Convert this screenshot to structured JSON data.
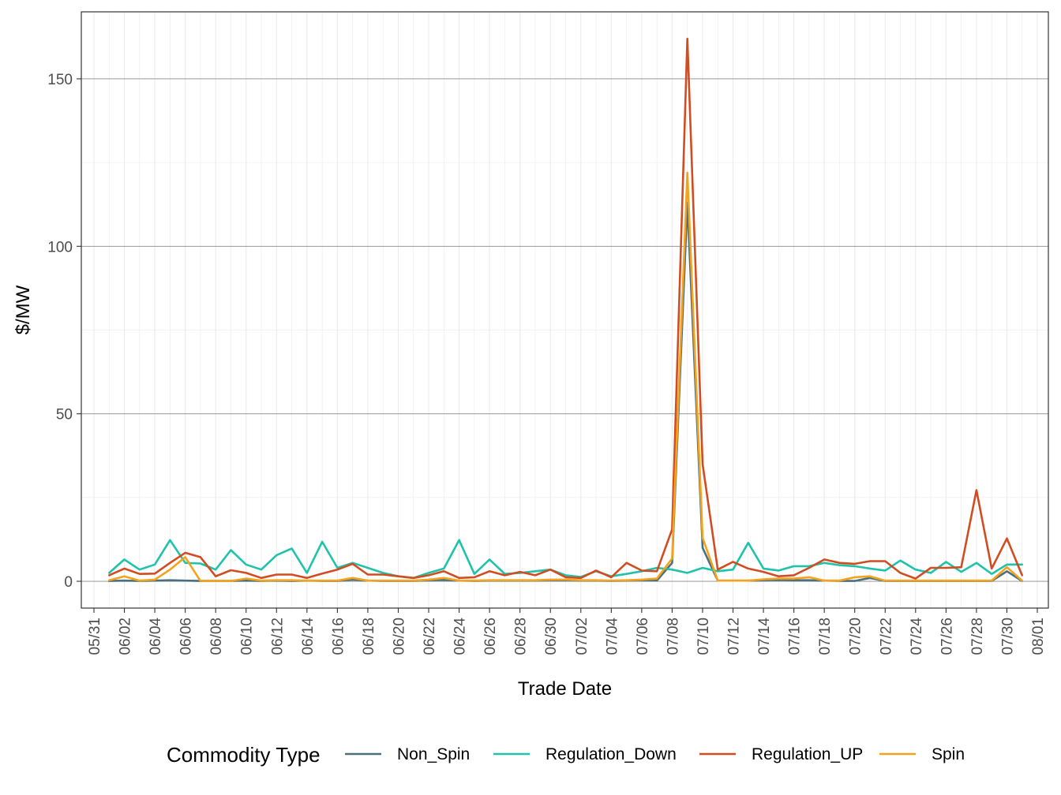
{
  "chart_data": {
    "type": "line",
    "xlabel": "Trade Date",
    "ylabel": "$/MW",
    "x_tick_labels": [
      "05/31",
      "06/02",
      "06/04",
      "06/06",
      "06/08",
      "06/10",
      "06/12",
      "06/14",
      "06/16",
      "06/18",
      "06/20",
      "06/22",
      "06/24",
      "06/26",
      "06/28",
      "06/30",
      "07/02",
      "07/04",
      "07/06",
      "07/08",
      "07/10",
      "07/12",
      "07/14",
      "07/16",
      "07/18",
      "07/20",
      "07/22",
      "07/24",
      "07/26",
      "07/28",
      "07/30",
      "08/01"
    ],
    "y_ticks": [
      0,
      50,
      100,
      150
    ],
    "ylim": [
      -8,
      170
    ],
    "xlim": [
      "2023-05-31",
      "2023-08-01"
    ],
    "grid": true,
    "legend_title": "Commodity Type",
    "legend_position": "bottom",
    "x": [
      "06/01",
      "06/02",
      "06/03",
      "06/04",
      "06/05",
      "06/06",
      "06/07",
      "06/08",
      "06/09",
      "06/10",
      "06/11",
      "06/12",
      "06/13",
      "06/14",
      "06/15",
      "06/16",
      "06/17",
      "06/18",
      "06/19",
      "06/20",
      "06/21",
      "06/22",
      "06/23",
      "06/24",
      "06/25",
      "06/26",
      "06/27",
      "06/28",
      "06/29",
      "06/30",
      "07/01",
      "07/02",
      "07/03",
      "07/04",
      "07/05",
      "07/06",
      "07/07",
      "07/08",
      "07/09",
      "07/10",
      "07/11",
      "07/12",
      "07/13",
      "07/14",
      "07/15",
      "07/16",
      "07/17",
      "07/18",
      "07/19",
      "07/20",
      "07/21",
      "07/22",
      "07/23",
      "07/24",
      "07/25",
      "07/26",
      "07/27",
      "07/28",
      "07/29",
      "07/30",
      "07/31"
    ],
    "series": [
      {
        "name": "Non_Spin",
        "color": "#4a6f80",
        "values": [
          0.1,
          0.2,
          0.1,
          0.2,
          0.3,
          0.2,
          0.1,
          0.1,
          0.1,
          0.2,
          0.1,
          0.2,
          0.1,
          0.2,
          0.1,
          0.1,
          0.5,
          0.2,
          0.1,
          0.1,
          0.1,
          0.3,
          0.4,
          0.2,
          0.1,
          0.2,
          0.2,
          0.2,
          0.2,
          0.3,
          0.3,
          0.2,
          0.2,
          0.1,
          0.2,
          0.3,
          0.2,
          5.5,
          113,
          10,
          0.2,
          0.2,
          0.2,
          0.3,
          0.4,
          0.3,
          0.3,
          0.2,
          0.1,
          0.1,
          1.0,
          0.1,
          0.1,
          0.1,
          0.1,
          0.1,
          0.1,
          0.1,
          0.1,
          3.0,
          0.1
        ]
      },
      {
        "name": "Regulation_Down",
        "color": "#1fc3aa",
        "values": [
          2.5,
          6.5,
          3.5,
          5.0,
          12.3,
          5.5,
          5.3,
          3.5,
          9.3,
          5.0,
          3.5,
          7.8,
          9.8,
          2.5,
          11.8,
          4.0,
          5.5,
          4.0,
          2.5,
          1.5,
          1.0,
          2.5,
          3.8,
          12.3,
          2.2,
          6.5,
          2.2,
          2.5,
          3.0,
          3.5,
          1.8,
          1.3,
          3.0,
          1.5,
          2.2,
          3.0,
          4.0,
          3.5,
          2.5,
          4.0,
          3.0,
          3.5,
          11.5,
          3.8,
          3.2,
          4.5,
          4.5,
          5.5,
          4.8,
          4.5,
          3.8,
          3.2,
          6.2,
          3.5,
          2.5,
          5.8,
          2.8,
          5.5,
          2.2,
          5.0,
          5.0
        ]
      },
      {
        "name": "Regulation_UP",
        "color": "#d24c22",
        "values": [
          1.8,
          3.8,
          2.2,
          2.3,
          5.5,
          8.5,
          7.2,
          1.5,
          3.3,
          2.5,
          1.0,
          2.0,
          2.0,
          1.0,
          2.3,
          3.5,
          5.2,
          2.0,
          2.0,
          1.5,
          1.0,
          1.8,
          3.0,
          1.0,
          1.2,
          3.0,
          1.8,
          2.8,
          1.8,
          3.5,
          1.2,
          1.0,
          3.2,
          1.2,
          5.5,
          3.2,
          3.0,
          15.5,
          162,
          35,
          3.5,
          5.8,
          3.8,
          2.8,
          1.5,
          1.8,
          4.0,
          6.5,
          5.5,
          5.2,
          6.0,
          6.0,
          2.5,
          0.8,
          4.0,
          4.0,
          4.2,
          27.2,
          3.8,
          12.8,
          1.8
        ]
      },
      {
        "name": "Spin",
        "color": "#f5a31a",
        "values": [
          0.3,
          1.5,
          0.2,
          0.5,
          3.5,
          7.2,
          0.1,
          0.1,
          0.1,
          0.8,
          0.2,
          0.3,
          0.3,
          0.2,
          0.2,
          0.2,
          1.0,
          0.2,
          0.2,
          0.2,
          0.2,
          0.5,
          1.0,
          0.2,
          0.2,
          0.3,
          0.3,
          0.3,
          0.3,
          0.5,
          0.5,
          0.3,
          0.3,
          0.2,
          0.3,
          0.5,
          0.8,
          6.8,
          122,
          13,
          0.2,
          0.2,
          0.2,
          0.6,
          0.8,
          0.8,
          1.2,
          0.2,
          0.2,
          1.2,
          1.5,
          0.2,
          0.2,
          0.2,
          0.2,
          0.2,
          0.2,
          0.2,
          0.2,
          4.2,
          0.2
        ]
      }
    ]
  }
}
